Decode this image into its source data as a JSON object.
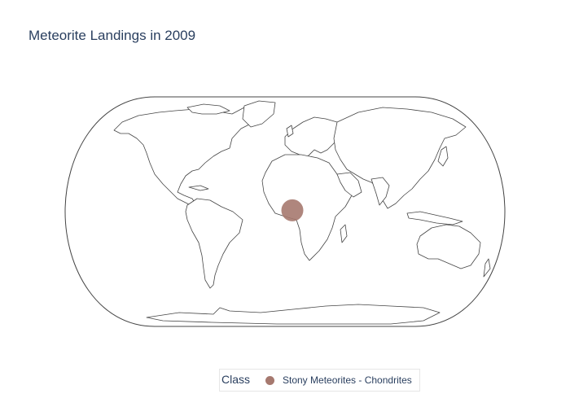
{
  "title": "Meteorite Landings in 2009",
  "chart_data": {
    "type": "scatter_geo",
    "projection": "natural earth",
    "title": "Meteorite Landings in 2009",
    "legend": {
      "title": "Class",
      "placement": "bottom-center",
      "entries": [
        "Stony Meteorites - Chondrites"
      ]
    },
    "series": [
      {
        "name": "Stony Meteorites - Chondrites",
        "color": "#a6796f",
        "points": [
          {
            "lat": 1,
            "lon": 6
          }
        ]
      }
    ]
  },
  "legend": {
    "title": "Class",
    "entries": [
      {
        "label": "Stony Meteorites - Chondrites",
        "color": "#a6796f"
      }
    ]
  }
}
